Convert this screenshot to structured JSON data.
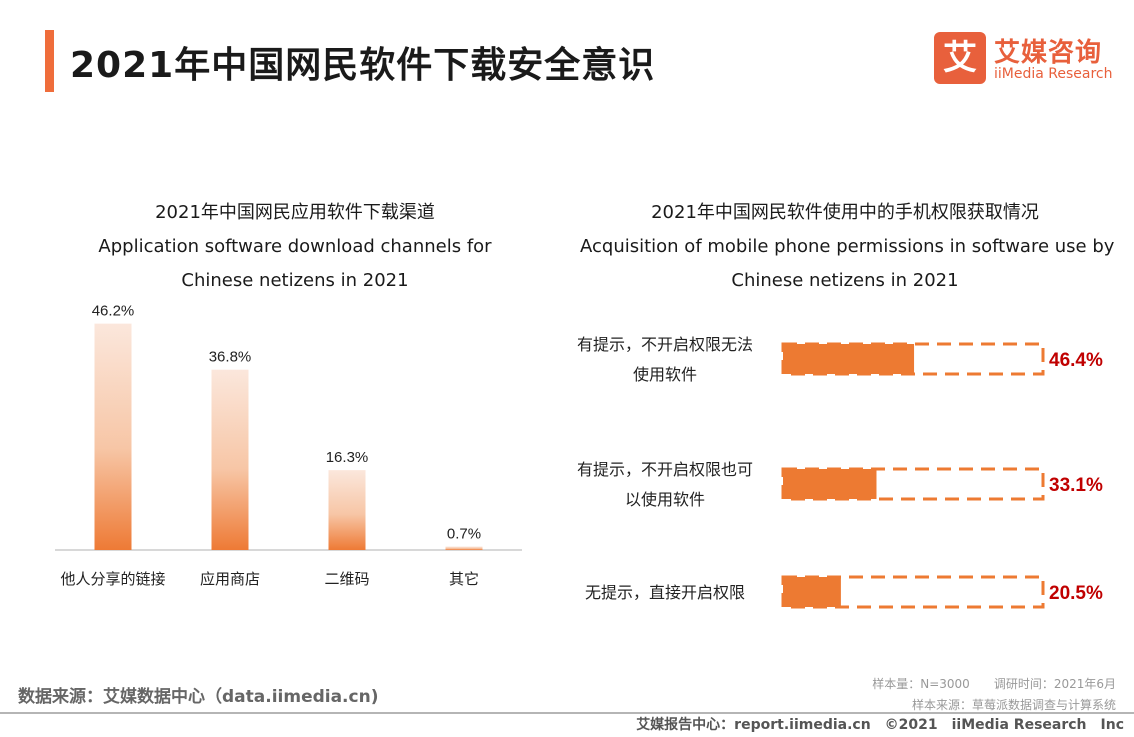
{
  "header": {
    "title": "2021年中国网民软件下载安全意识"
  },
  "logo": {
    "glyph": "艾",
    "name_cn": "艾媒咨询",
    "name_en": "iiMedia Research"
  },
  "colors": {
    "accent": "#ef6d3b",
    "bar": "#ed7a32",
    "bar_light": "#fbe6da",
    "value_red": "#c00000"
  },
  "chart_data": [
    {
      "type": "bar",
      "title_cn": "2021年中国网民应用软件下载渠道",
      "title_en_line1": "Application software download channels for",
      "title_en_line2": "Chinese netizens in 2021",
      "categories": [
        "他人分享的链接",
        "应用商店",
        "二维码",
        "其它"
      ],
      "values": [
        46.2,
        36.8,
        16.3,
        0.7
      ],
      "value_labels": [
        "46.2%",
        "36.8%",
        "16.3%",
        "0.7%"
      ],
      "ylim": [
        0,
        50
      ],
      "grid": false
    },
    {
      "type": "bar",
      "orientation": "horizontal",
      "title_cn": "2021年中国网民软件使用中的手机权限获取情况",
      "title_en_line1": "Acquisition of mobile phone permissions in software use by",
      "title_en_line2": "Chinese netizens in 2021",
      "categories": [
        [
          "有提示，不开启权限无法",
          "使用软件"
        ],
        [
          "有提示，不开启权限也可",
          "以使用软件"
        ],
        [
          "无提示，直接开启权限"
        ]
      ],
      "values": [
        46.4,
        33.1,
        20.5
      ],
      "value_labels": [
        "46.4%",
        "33.1%",
        "20.5%"
      ],
      "xlim": [
        0,
        100
      ],
      "grid": false
    }
  ],
  "footer": {
    "source": "数据来源：艾媒数据中心（data.iimedia.cn)",
    "meta_line1": "样本量：N=3000　　调研时间：2021年6月",
    "meta_line2": "样本来源：草莓派数据调查与计算系统",
    "copyright": "艾媒报告中心：report.iimedia.cn　©2021　iiMedia Research　Inc"
  }
}
